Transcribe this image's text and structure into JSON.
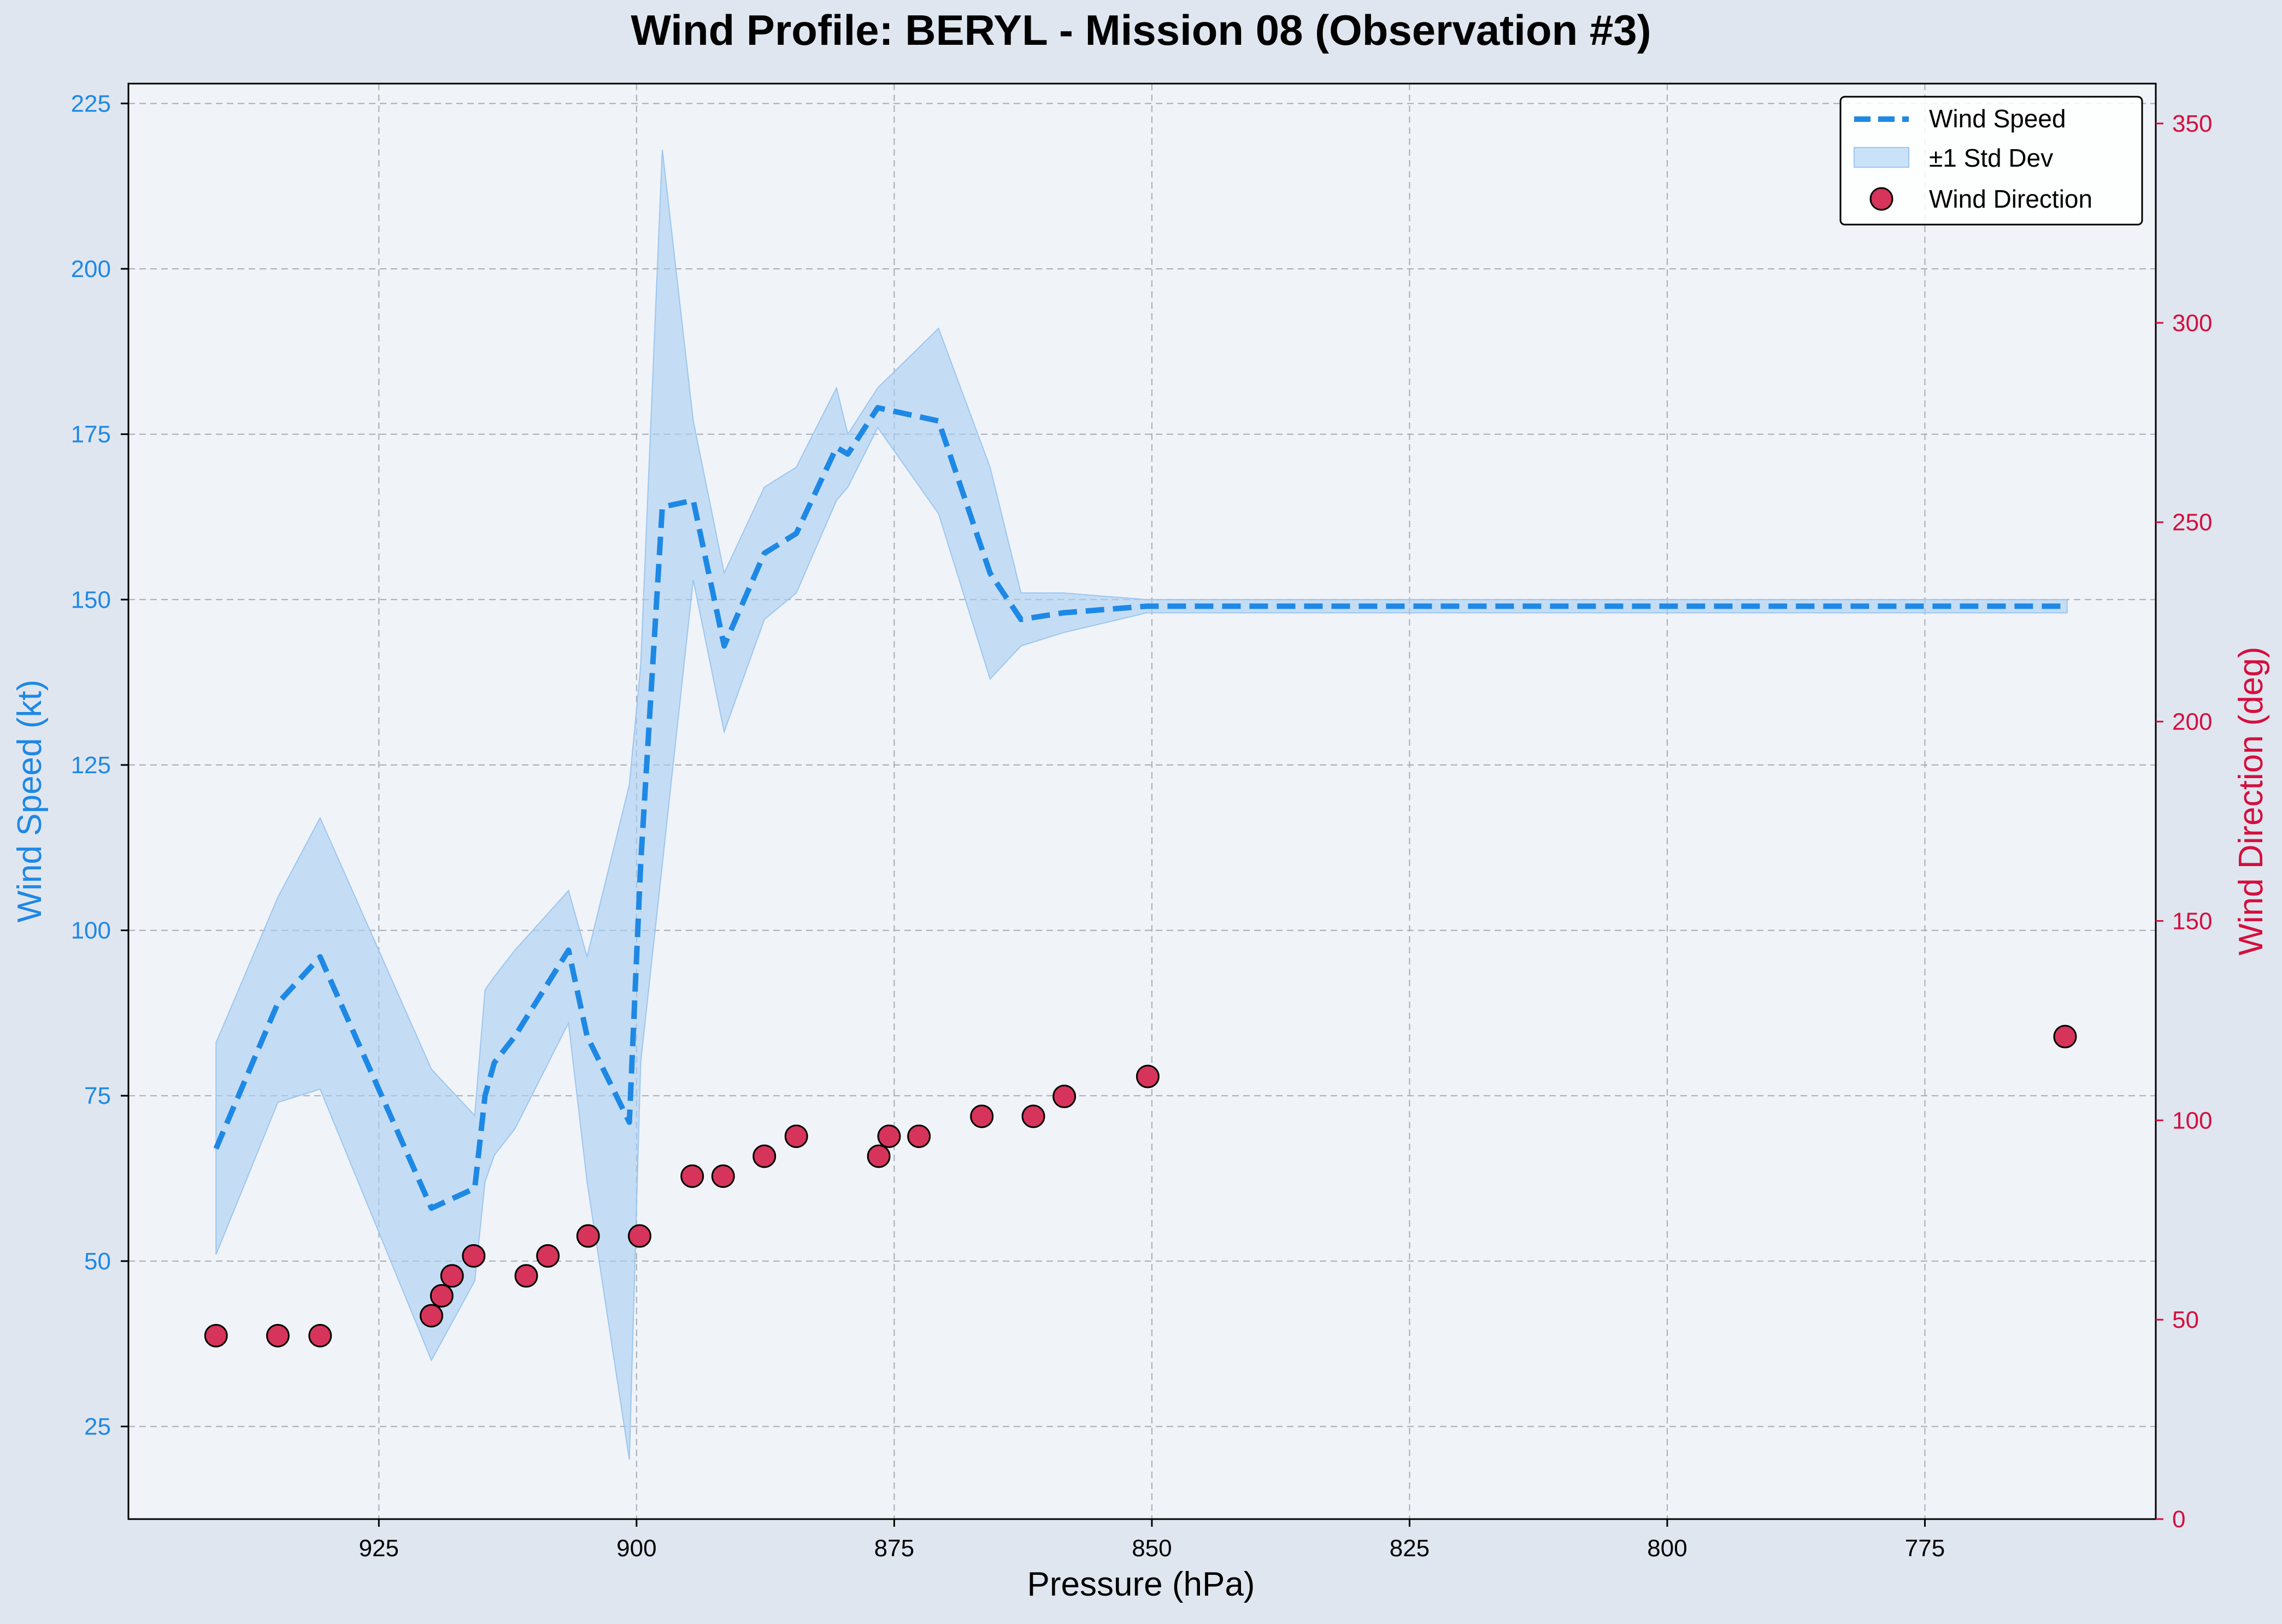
{
  "chart_data": {
    "type": "line",
    "title": "Wind Profile: BERYL - Mission 08 (Observation #3)",
    "xlabel": "Pressure (hPa)",
    "ylabel": "Wind Speed (kt)",
    "y2label": "Wind Direction (deg)",
    "x_inverted": true,
    "xlim": [
      949.3,
      752.6
    ],
    "ylim": [
      11,
      228
    ],
    "y2lim": [
      0,
      360
    ],
    "xticks": [
      925,
      900,
      875,
      850,
      825,
      800,
      775
    ],
    "yticks": [
      25,
      50,
      75,
      100,
      125,
      150,
      175,
      200,
      225
    ],
    "y2ticks": [
      0,
      50,
      100,
      150,
      200,
      250,
      300,
      350
    ],
    "grid": true,
    "legend_position": "top-right",
    "colors": {
      "speed": "#1e88e5",
      "band": "#a9cff3",
      "direction_fill": "#d6345a",
      "direction_edge": "#000000",
      "right_axis": "#d40f3f",
      "background": "#f0f3f8",
      "page": "#e0e6ef"
    },
    "series": [
      {
        "name": "Wind Speed",
        "kind": "line",
        "axis": "left",
        "x": [
          940.8,
          934.8,
          930.7,
          919.9,
          915.7,
          914.7,
          913.8,
          911.8,
          906.6,
          904.8,
          900.7,
          899.6,
          897.5,
          894.5,
          891.5,
          887.6,
          884.5,
          880.6,
          879.5,
          876.6,
          870.7,
          865.7,
          862.7,
          858.6,
          850.5,
          761.2
        ],
        "y": [
          67,
          89,
          96,
          58,
          61,
          75,
          80,
          84,
          97,
          84,
          71,
          110,
          164,
          165,
          143,
          157,
          160,
          173,
          172,
          179,
          177,
          154,
          147,
          148,
          149,
          149
        ]
      },
      {
        "name": "±1 Std Dev",
        "kind": "band",
        "axis": "left",
        "x": [
          940.8,
          934.8,
          930.7,
          919.9,
          915.7,
          914.7,
          913.8,
          911.8,
          906.6,
          904.8,
          900.7,
          899.6,
          897.5,
          894.5,
          891.5,
          887.6,
          884.5,
          880.6,
          879.5,
          876.6,
          870.7,
          865.7,
          862.7,
          858.6,
          850.5,
          761.2
        ],
        "lower": [
          51,
          74,
          76,
          35,
          47,
          62,
          66,
          70,
          86,
          62,
          20,
          80,
          110,
          153,
          130,
          147,
          151,
          165,
          167,
          176,
          163,
          138,
          143,
          145,
          148,
          148
        ],
        "upper": [
          83,
          105,
          117,
          79,
          72,
          91,
          93,
          97,
          106,
          96,
          122,
          140,
          218,
          177,
          154,
          167,
          170,
          182,
          175,
          182,
          191,
          170,
          151,
          151,
          150,
          150
        ]
      },
      {
        "name": "Wind Direction",
        "kind": "scatter",
        "axis": "right",
        "x": [
          940.8,
          934.8,
          930.7,
          919.9,
          918.9,
          917.9,
          915.8,
          910.7,
          908.6,
          904.7,
          899.7,
          894.6,
          891.6,
          887.6,
          884.5,
          876.5,
          875.5,
          872.6,
          866.5,
          861.5,
          858.5,
          850.4,
          761.4
        ],
        "y": [
          46,
          46,
          46,
          51,
          56,
          61,
          66,
          61,
          66,
          71,
          71,
          86,
          86,
          91,
          96,
          91,
          96,
          96,
          101,
          101,
          106,
          111,
          121
        ]
      }
    ]
  }
}
